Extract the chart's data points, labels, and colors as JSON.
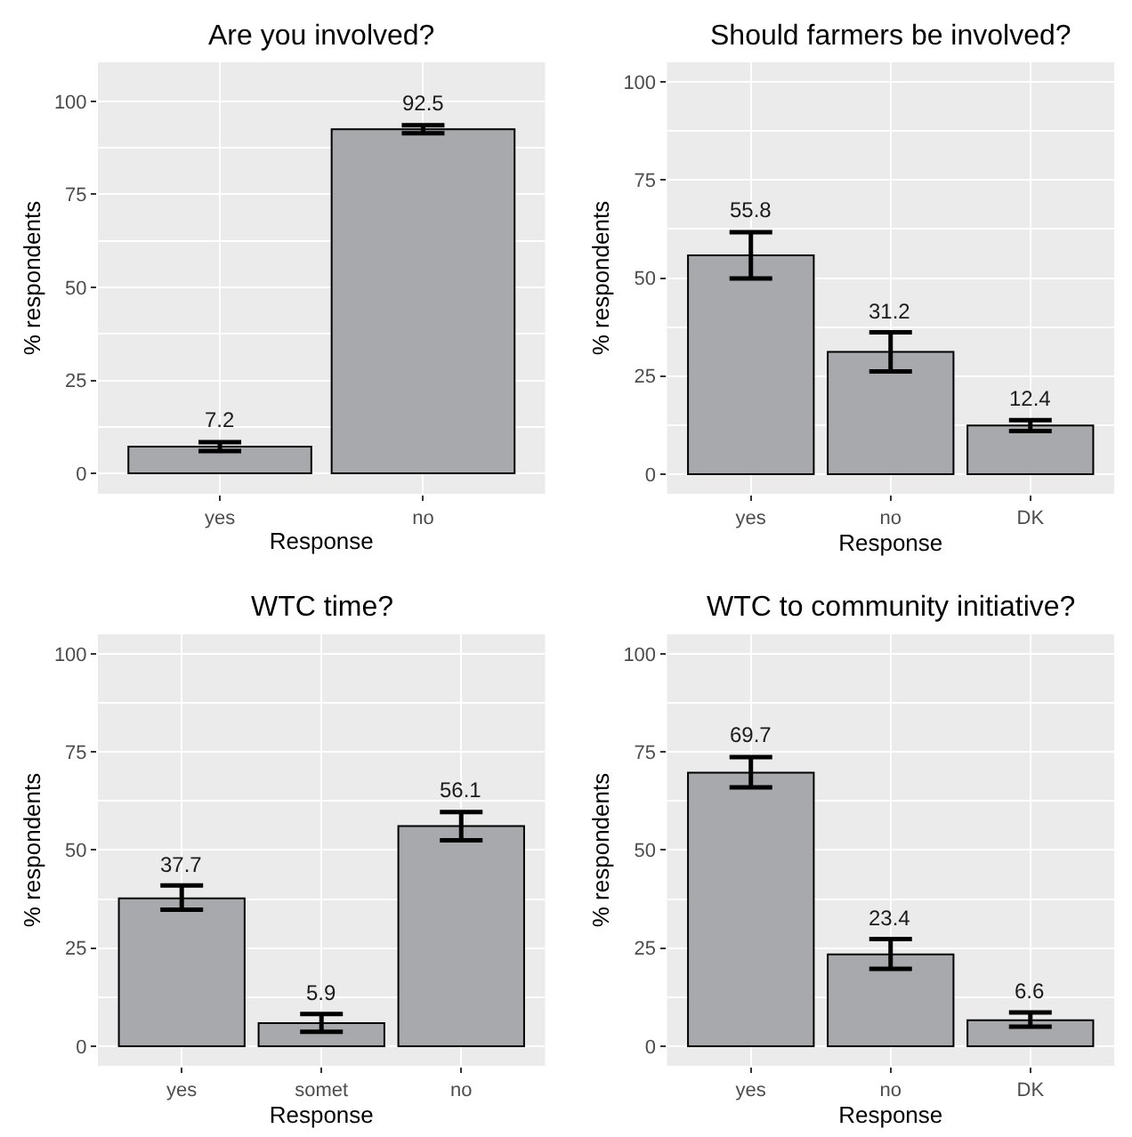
{
  "chart_data": [
    {
      "type": "bar",
      "title": "Are you involved?",
      "xlabel": "Response",
      "ylabel": "% respondents",
      "categories": [
        "yes",
        "no"
      ],
      "values": [
        7.2,
        92.5
      ],
      "errors": [
        [
          6.0,
          8.4
        ],
        [
          91.4,
          93.6
        ]
      ],
      "color": "#a7a9ac",
      "ylim": [
        -5.5,
        110.5
      ],
      "yticks": [
        0,
        25,
        50,
        75,
        100
      ],
      "grid": true,
      "data_labels": true
    },
    {
      "type": "bar",
      "title": "Should farmers be involved?",
      "xlabel": "Response",
      "ylabel": "% respondents",
      "categories": [
        "yes",
        "no",
        "DK"
      ],
      "values": [
        55.8,
        31.2,
        12.4
      ],
      "errors": [
        [
          49.9,
          61.7
        ],
        [
          26.2,
          36.2
        ],
        [
          11.0,
          13.8
        ]
      ],
      "color": "#a7a9ac",
      "ylim": [
        -5,
        105
      ],
      "yticks": [
        0,
        25,
        50,
        75,
        100
      ],
      "grid": true,
      "data_labels": true
    },
    {
      "type": "bar",
      "title": "WTC time?",
      "xlabel": "Response",
      "ylabel": "% respondents",
      "categories": [
        "yes",
        "somet",
        "no"
      ],
      "values": [
        37.7,
        5.9,
        56.1
      ],
      "errors": [
        [
          34.8,
          41.0
        ],
        [
          3.7,
          8.2
        ],
        [
          52.5,
          59.7
        ]
      ],
      "color": "#a7a9ac",
      "ylim": [
        -5,
        105
      ],
      "yticks": [
        0,
        25,
        50,
        75,
        100
      ],
      "grid": true,
      "data_labels": true
    },
    {
      "type": "bar",
      "title": "WTC to community initiative?",
      "xlabel": "Response",
      "ylabel": "% respondents",
      "categories": [
        "yes",
        "no",
        "DK"
      ],
      "values": [
        69.7,
        23.4,
        6.6
      ],
      "errors": [
        [
          66.0,
          73.7
        ],
        [
          19.7,
          27.3
        ],
        [
          5.0,
          8.6
        ]
      ],
      "color": "#a7a9ac",
      "ylim": [
        -5,
        105
      ],
      "yticks": [
        0,
        25,
        50,
        75,
        100
      ],
      "grid": true,
      "data_labels": true
    }
  ]
}
